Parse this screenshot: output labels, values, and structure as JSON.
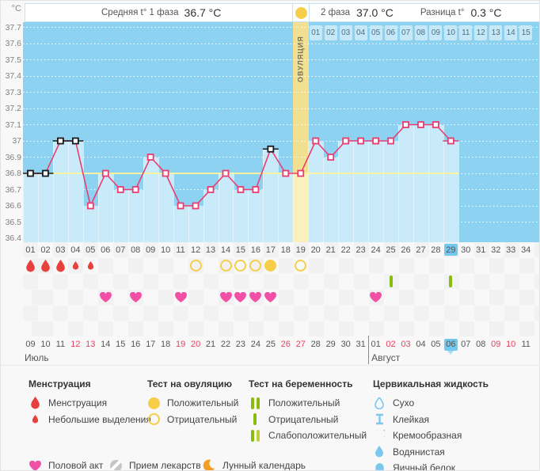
{
  "header": {
    "unit_label": "°C",
    "phase1_label": "Средняя t° 1 фаза",
    "phase1_value": "36.7 °C",
    "phase2_label": "2 фаза",
    "phase2_value": "37.0 °C",
    "diff_label": "Разница t°",
    "diff_value": "0.3 °C"
  },
  "chart_data": {
    "type": "line",
    "title": "График базальной температуры",
    "ylabel": "°C",
    "ylim": [
      36.4,
      37.7
    ],
    "yticks": [
      "37.7",
      "37.6",
      "37.5",
      "37.4",
      "37.3",
      "37.2",
      "37.1",
      "37",
      "36.9",
      "36.8",
      "36.7",
      "36.6",
      "36.5",
      "36.4"
    ],
    "x_days_total": 34,
    "cycle_day_labels": [
      "01",
      "02",
      "03",
      "04",
      "05",
      "06",
      "07",
      "08",
      "09",
      "10",
      "11",
      "12",
      "13",
      "14",
      "15",
      "16",
      "17",
      "18",
      "19",
      "20",
      "21",
      "22",
      "23",
      "24",
      "25",
      "26",
      "27",
      "28",
      "29",
      "30",
      "31",
      "32",
      "33",
      "34"
    ],
    "ovulation_day": 19,
    "ovulation_label": "ОВУЛЯЦИЯ",
    "today_day": 29,
    "coverline_temp": 36.8,
    "phase2_day_labels": [
      "01",
      "02",
      "03",
      "04",
      "05",
      "06",
      "07",
      "08",
      "09",
      "10",
      "11",
      "12",
      "13",
      "14",
      "15"
    ],
    "points": [
      {
        "day": 1,
        "t": 36.8,
        "special": true
      },
      {
        "day": 2,
        "t": 36.8,
        "special": true
      },
      {
        "day": 3,
        "t": 37.0,
        "special": true
      },
      {
        "day": 4,
        "t": 37.0,
        "special": true
      },
      {
        "day": 5,
        "t": 36.6
      },
      {
        "day": 6,
        "t": 36.8
      },
      {
        "day": 7,
        "t": 36.7
      },
      {
        "day": 8,
        "t": 36.7
      },
      {
        "day": 9,
        "t": 36.9
      },
      {
        "day": 10,
        "t": 36.8
      },
      {
        "day": 11,
        "t": 36.6
      },
      {
        "day": 12,
        "t": 36.6
      },
      {
        "day": 13,
        "t": 36.7
      },
      {
        "day": 14,
        "t": 36.8
      },
      {
        "day": 15,
        "t": 36.7
      },
      {
        "day": 16,
        "t": 36.7
      },
      {
        "day": 17,
        "t": 36.95,
        "special": true
      },
      {
        "day": 18,
        "t": 36.8
      },
      {
        "day": 19,
        "t": 36.8
      },
      {
        "day": 20,
        "t": 37.0
      },
      {
        "day": 21,
        "t": 36.9
      },
      {
        "day": 22,
        "t": 37.0
      },
      {
        "day": 23,
        "t": 37.0
      },
      {
        "day": 24,
        "t": 37.0
      },
      {
        "day": 25,
        "t": 37.0
      },
      {
        "day": 26,
        "t": 37.1
      },
      {
        "day": 27,
        "t": 37.1
      },
      {
        "day": 28,
        "t": 37.1
      },
      {
        "day": 29,
        "t": 37.0
      }
    ]
  },
  "events": {
    "menstruation_heavy_days": [
      1,
      2,
      3
    ],
    "menstruation_light_days": [
      4,
      5
    ],
    "ovulation_test_negative_days": [
      12,
      14,
      15,
      16,
      19
    ],
    "ovulation_test_positive_days": [
      17
    ],
    "pregnancy_test_negative_days": [
      25,
      29
    ],
    "intercourse_days": [
      6,
      8,
      11,
      14,
      15,
      16,
      17,
      24
    ]
  },
  "calendar": {
    "dates": [
      "09",
      "10",
      "11",
      "12",
      "13",
      "14",
      "15",
      "16",
      "17",
      "18",
      "19",
      "20",
      "21",
      "22",
      "23",
      "24",
      "25",
      "26",
      "27",
      "28",
      "29",
      "30",
      "31",
      "01",
      "02",
      "03",
      "04",
      "05",
      "06",
      "07",
      "08",
      "09",
      "10",
      "11"
    ],
    "red_date_days": [
      4,
      5,
      11,
      12,
      18,
      19,
      25,
      26,
      32,
      33
    ],
    "today_date_day": 29,
    "month1": "Июль",
    "month2": "Август",
    "month_divider_after_day": 23
  },
  "legend": {
    "groups": [
      {
        "title": "Менструация",
        "items": [
          {
            "icon": "drop",
            "label": "Менструация"
          },
          {
            "icon": "drop-small",
            "label": "Небольшие выделения"
          }
        ]
      },
      {
        "title": "Тест на овуляцию",
        "items": [
          {
            "icon": "circle-filled",
            "label": "Положительный"
          },
          {
            "icon": "circle-open",
            "label": "Отрицательный"
          }
        ]
      },
      {
        "title": "Тест на беременность",
        "items": [
          {
            "icon": "bars-2",
            "label": "Положительный"
          },
          {
            "icon": "bar-1",
            "label": "Отрицательный"
          },
          {
            "icon": "bars-weak",
            "label": "Слабоположительный"
          }
        ]
      },
      {
        "title": "Цервикальная жидкость",
        "items": [
          {
            "icon": "drop-outline",
            "label": "Сухо"
          },
          {
            "icon": "glue",
            "label": "Клейкая"
          },
          {
            "icon": "cream",
            "label": "Кремообразная"
          },
          {
            "icon": "drop-water",
            "label": "Водянистая"
          },
          {
            "icon": "egg-white",
            "label": "Яичный белок"
          }
        ]
      }
    ],
    "bottom_items": [
      {
        "icon": "heart",
        "label": "Половой акт"
      },
      {
        "icon": "pill",
        "label": "Прием лекарств"
      },
      {
        "icon": "moon",
        "label": "Лунный календарь"
      }
    ]
  },
  "colors": {
    "chart_bg": "#8DD2F0",
    "chart_fill": "#C9EAF8",
    "curve_pink": "#EB3C71",
    "special_black": "#1A1A1A",
    "coverline_yellow": "#FAF3A0",
    "ovulation_band": "#F1E091",
    "ovulation_band_fill": "#F9F0BD",
    "today_blue": "#72C8EE",
    "red_date": "#E8425C",
    "menstruation_red": "#E8413D",
    "heart_pink": "#F250A6",
    "test_yellow": "#F6CE4A",
    "pregnancy_green": "#8CBB10",
    "pregnancy_green_light": "#BCCF3A",
    "cervical_blue": "#7CC7EC",
    "moon_orange": "#F59E23",
    "pill_gray": "#C6C6C6"
  }
}
